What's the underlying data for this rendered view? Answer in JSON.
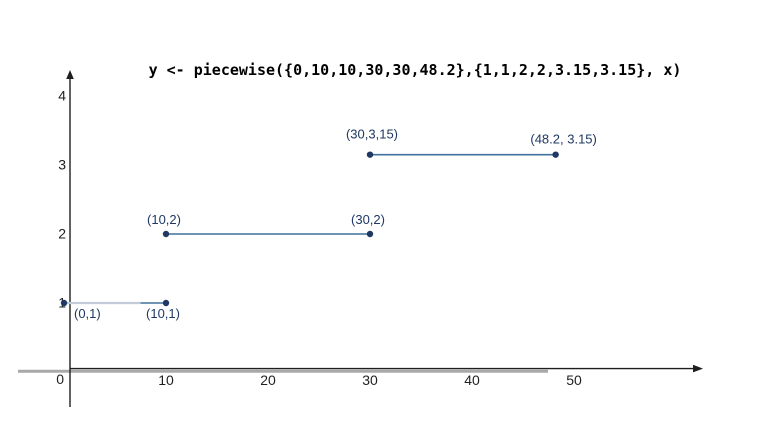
{
  "title": "y <- piecewise({0,10,10,30,30,48.2},{1,1,2,2,3.15,3.15}, x)",
  "colors": {
    "segment_line": "#41719c",
    "point": "#1f3864",
    "point_label": "#1f3864",
    "axis": "#1f1f1f",
    "axis_gray": "#a9a9a9",
    "segment_highlight": "#c2ccd8",
    "background": "#ffffff"
  },
  "chart_data": {
    "type": "line",
    "title": "y <- piecewise({0,10,10,30,30,48.2},{1,1,2,2,3.15,3.15}, x)",
    "x_ticks": [
      10,
      20,
      30,
      40,
      50
    ],
    "y_ticks": [
      1,
      2,
      3,
      4
    ],
    "origin_label": "0",
    "xlim": [
      0,
      62
    ],
    "ylim": [
      0,
      4.3
    ],
    "grid": false,
    "legend": false,
    "segments": [
      {
        "points": [
          [
            0,
            1
          ],
          [
            10,
            1
          ]
        ],
        "labels": [
          "(0,1)",
          "(10,1)"
        ],
        "label_side": "below",
        "highlight_to_x": 7.5
      },
      {
        "points": [
          [
            10,
            2
          ],
          [
            30,
            2
          ]
        ],
        "labels": [
          "(10,2)",
          "(30,2)"
        ],
        "label_side": "above"
      },
      {
        "points": [
          [
            30,
            3.15
          ],
          [
            48.2,
            3.15
          ]
        ],
        "labels": [
          "(30,3,15)",
          "(48.2, 3.15)"
        ],
        "label_side": "above"
      }
    ]
  }
}
